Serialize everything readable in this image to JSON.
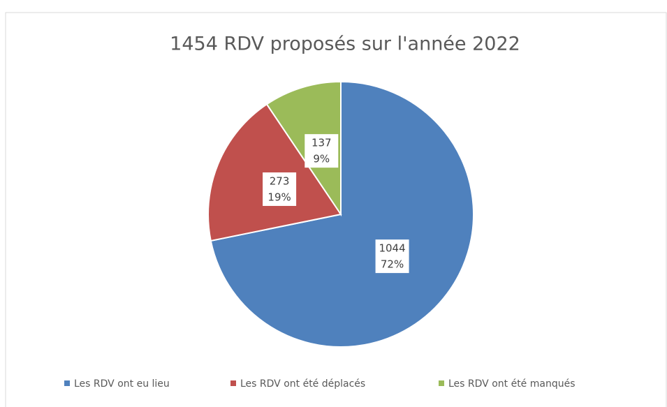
{
  "chart_data": {
    "type": "pie",
    "title": "1454 RDV proposés sur l'année 2022",
    "categories": [
      "Les RDV ont eu lieu",
      "Les RDV ont été déplacés",
      "Les RDV ont été manqués"
    ],
    "values": [
      1044,
      273,
      137
    ],
    "percent_labels": [
      "72%",
      "19%",
      "9%"
    ],
    "colors": [
      "#4f81bd",
      "#c0504d",
      "#9bbb59"
    ],
    "legend": "bottom"
  }
}
